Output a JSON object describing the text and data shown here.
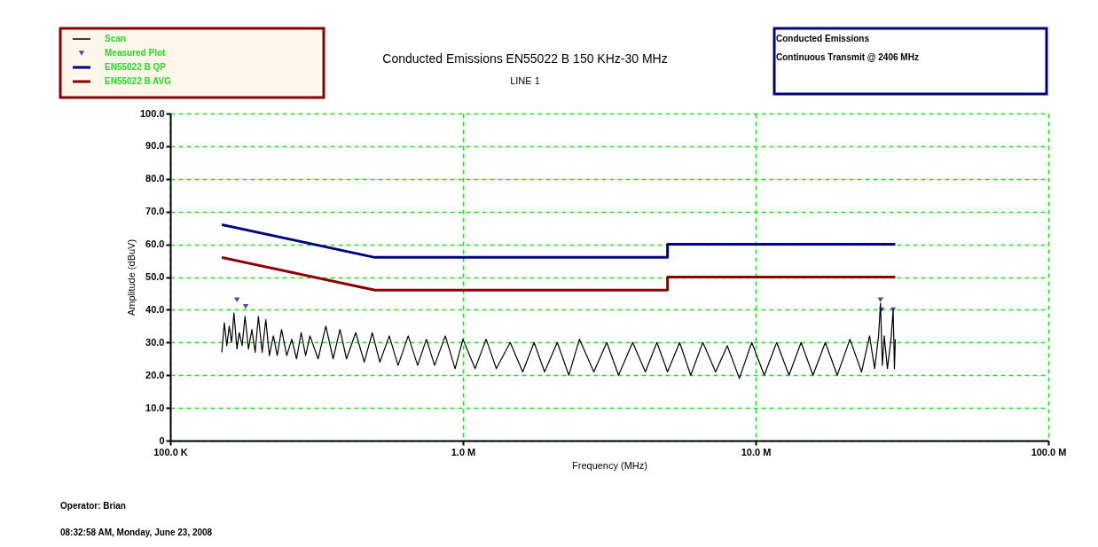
{
  "chart_data": {
    "type": "line",
    "title": "Conducted Emissions EN55022 B 150 KHz-30 MHz",
    "subtitle": "LINE 1",
    "xlabel": "Frequency (MHz)",
    "ylabel": "Amplitude (dBuV)",
    "log": "x",
    "xlim": [
      0.1,
      100
    ],
    "xticks": [
      {
        "value": 0.1,
        "label": "100.0 K"
      },
      {
        "value": 1,
        "label": "1.0 M"
      },
      {
        "value": 10,
        "label": "10.0 M"
      },
      {
        "value": 100,
        "label": "100.0 M"
      }
    ],
    "ylim": [
      0,
      100
    ],
    "yticks": [
      0,
      {
        "value": 10,
        "label": "10.0"
      },
      {
        "value": 20,
        "label": "20.0"
      },
      {
        "value": 30,
        "label": "30.0"
      },
      {
        "value": 40,
        "label": "40.0"
      },
      {
        "value": 50,
        "label": "50.0"
      },
      {
        "value": 60,
        "label": "60.0"
      },
      {
        "value": 70,
        "label": "70.0"
      },
      {
        "value": 80,
        "label": "80.0"
      },
      {
        "value": 90,
        "label": "90.0"
      },
      {
        "value": 100,
        "label": "100.0"
      }
    ],
    "grid": true,
    "legend": "top left",
    "series": [
      {
        "name": "Scan",
        "color": "#000000",
        "x": [
          0.15,
          0.153,
          0.156,
          0.159,
          0.162,
          0.165,
          0.169,
          0.172,
          0.176,
          0.18,
          0.185,
          0.19,
          0.195,
          0.2,
          0.206,
          0.212,
          0.218,
          0.225,
          0.232,
          0.24,
          0.25,
          0.26,
          0.27,
          0.28,
          0.29,
          0.3,
          0.32,
          0.34,
          0.36,
          0.38,
          0.4,
          0.43,
          0.46,
          0.49,
          0.52,
          0.56,
          0.6,
          0.65,
          0.7,
          0.75,
          0.8,
          0.87,
          0.94,
          1.0,
          1.1,
          1.2,
          1.3,
          1.45,
          1.6,
          1.75,
          1.9,
          2.1,
          2.3,
          2.5,
          2.8,
          3.1,
          3.4,
          3.8,
          4.2,
          4.6,
          5.0,
          5.5,
          6.0,
          6.6,
          7.3,
          8.0,
          8.8,
          9.7,
          10.7,
          11.8,
          13,
          14.3,
          15.7,
          17.3,
          19,
          21,
          23,
          24.5,
          25.5,
          26.3,
          26.7,
          27.1,
          27.5,
          28.2,
          29,
          29.5,
          29.8,
          30
        ],
        "values": [
          27,
          36,
          29,
          35,
          30,
          39,
          28,
          33,
          29,
          38,
          28,
          34,
          27,
          38,
          27,
          37,
          26,
          32,
          26,
          34,
          26,
          31,
          25,
          33,
          26,
          32,
          25,
          35,
          25,
          34,
          25,
          33,
          24,
          33,
          24,
          32,
          23,
          32,
          23,
          31,
          23,
          32,
          22,
          31,
          22,
          31,
          22,
          30,
          21,
          30,
          21,
          30,
          20,
          31,
          21,
          30,
          20,
          30,
          21,
          30,
          21,
          30,
          20,
          30,
          21,
          29,
          19,
          30,
          20,
          30,
          20,
          30,
          20,
          30,
          20,
          31,
          21,
          32,
          22,
          32,
          42,
          23,
          32,
          22,
          31,
          40,
          22,
          31
        ]
      },
      {
        "name": "Measured Plot",
        "type": "scatter",
        "marker": "triangle",
        "color": "#000080",
        "x": [
          0.169,
          0.181,
          26.7,
          26.9,
          29.5
        ],
        "values": [
          43,
          41,
          43,
          40,
          40
        ]
      },
      {
        "name": "EN55022 B QP",
        "color": "#000080",
        "x": [
          0.15,
          0.5,
          5,
          5,
          30
        ],
        "values": [
          66,
          56,
          56,
          60,
          60
        ]
      },
      {
        "name": "EN55022 B AVG",
        "color": "#8b0000",
        "x": [
          0.15,
          0.5,
          5,
          5,
          30
        ],
        "values": [
          56,
          46,
          46,
          50,
          50
        ]
      }
    ],
    "annotations": [
      "Conducted Emissions",
      "Continuous Transmit @ 2406 MHz",
      "Operator: Brian",
      "08:32:58 AM, Monday, June 23, 2008"
    ]
  }
}
